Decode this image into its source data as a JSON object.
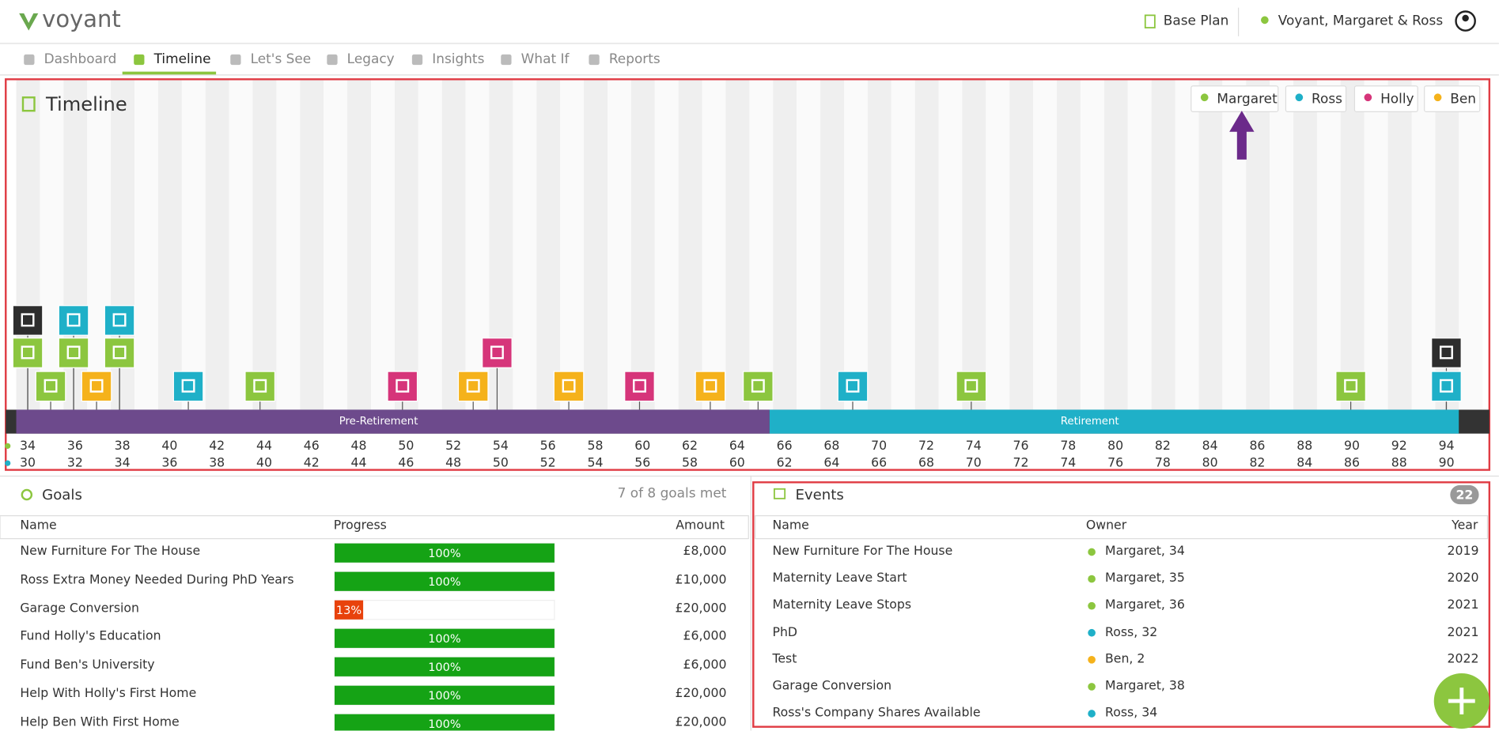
{
  "header": {
    "brand": "voyant",
    "plan": "Base Plan",
    "client": "Voyant, Margaret & Ross"
  },
  "tabs": [
    "Dashboard",
    "Timeline",
    "Let's See",
    "Legacy",
    "Insights",
    "What If",
    "Reports"
  ],
  "timeline": {
    "title": "Timeline",
    "people": [
      "Margaret",
      "Ross",
      "Holly",
      "Ben"
    ],
    "phases": [
      "Pre-Retirement",
      "Retirement"
    ],
    "ages_first": [
      34,
      36,
      38,
      40,
      42,
      44,
      46,
      48,
      50,
      52,
      54,
      56,
      58,
      60,
      62,
      64,
      66,
      68,
      70,
      72,
      74,
      76,
      78,
      80,
      82,
      84,
      86,
      88,
      90,
      92,
      94
    ],
    "ages_second": [
      30,
      32,
      34,
      36,
      38,
      40,
      42,
      44,
      46,
      48,
      50,
      52,
      54,
      56,
      58,
      60,
      62,
      64,
      66,
      68,
      70,
      72,
      74,
      76,
      78,
      80,
      82,
      84,
      86,
      88,
      90
    ]
  },
  "goals": {
    "title": "Goals",
    "summary": "7 of 8 goals met",
    "columns": [
      "Name",
      "Progress",
      "Amount"
    ],
    "rows": [
      {
        "name": "New Furniture For The House",
        "progress": "100%",
        "amount": "£8,000"
      },
      {
        "name": "Ross Extra Money Needed During PhD Years",
        "progress": "100%",
        "amount": "£10,000"
      },
      {
        "name": "Garage Conversion",
        "progress": "13%",
        "amount": "£20,000"
      },
      {
        "name": "Fund Holly's Education",
        "progress": "100%",
        "amount": "£6,000"
      },
      {
        "name": "Fund Ben's University",
        "progress": "100%",
        "amount": "£6,000"
      },
      {
        "name": "Help With Holly's First Home",
        "progress": "100%",
        "amount": "£20,000"
      },
      {
        "name": "Help Ben With First Home",
        "progress": "100%",
        "amount": "£20,000"
      }
    ]
  },
  "events": {
    "title": "Events",
    "count": "22",
    "columns": [
      "Name",
      "Owner",
      "Year"
    ],
    "rows": [
      {
        "name": "New Furniture For The House",
        "owner": "Margaret, 34",
        "year": "2019"
      },
      {
        "name": "Maternity Leave Start",
        "owner": "Margaret, 35",
        "year": "2020"
      },
      {
        "name": "Maternity Leave Stops",
        "owner": "Margaret, 36",
        "year": "2021"
      },
      {
        "name": "PhD",
        "owner": "Ross, 32",
        "year": "2021"
      },
      {
        "name": "Test",
        "owner": "Ben, 2",
        "year": "2022"
      },
      {
        "name": "Garage Conversion",
        "owner": "Margaret, 38"
      },
      {
        "name": "Ross's Company Shares Available",
        "owner": "Ross, 34"
      }
    ]
  }
}
